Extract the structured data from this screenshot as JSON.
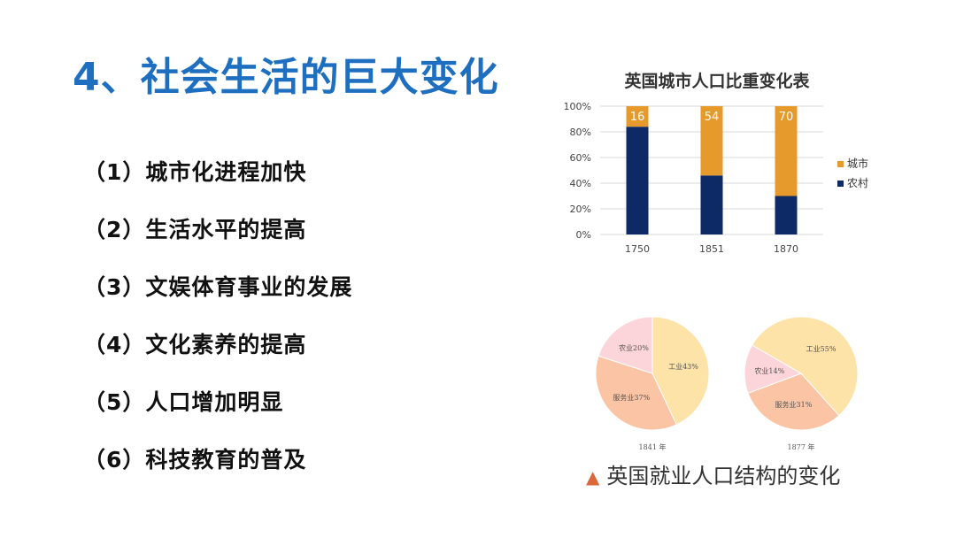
{
  "slide": {
    "title": "4、社会生活的巨大变化",
    "points": [
      "（1）城市化进程加快",
      "（2）生活水平的提高",
      "（3）文娱体育事业的发展",
      "（4）文化素养的提高",
      "（5）人口增加明显",
      "（6）科技教育的普及"
    ],
    "pie_caption": "英国就业人口结构的变化",
    "pie_caption_icon": "triangle-icon"
  },
  "colors": {
    "title": "#1f6fc0",
    "urban": "#e59a2b",
    "rural": "#0d2a66",
    "industry": "#fde3a8",
    "service": "#fbc4a4",
    "agriculture": "#fbd5d9",
    "caption_triangle": "#d9683a"
  },
  "chart_data": [
    {
      "type": "bar",
      "stacked": true,
      "title": "英国城市人口比重变化表",
      "categories": [
        "1750",
        "1851",
        "1870"
      ],
      "series": [
        {
          "name": "城市",
          "values": [
            16,
            54,
            70
          ]
        },
        {
          "name": "农村",
          "values": [
            84,
            46,
            30
          ]
        }
      ],
      "data_labels": [
        "16",
        "54",
        "70"
      ],
      "y_ticks": [
        "0%",
        "20%",
        "40%",
        "60%",
        "80%",
        "100%"
      ],
      "ylim": [
        0,
        100
      ],
      "legend": "right",
      "grid": true
    },
    {
      "type": "pie",
      "caption": "1841 年",
      "slices": [
        {
          "label": "工业43%",
          "value": 43
        },
        {
          "label": "服务业37%",
          "value": 37
        },
        {
          "label": "农业20%",
          "value": 20
        }
      ]
    },
    {
      "type": "pie",
      "caption": "1877 年",
      "slices": [
        {
          "label": "工业55%",
          "value": 55
        },
        {
          "label": "服务业31%",
          "value": 31
        },
        {
          "label": "农业14%",
          "value": 14
        }
      ]
    }
  ]
}
